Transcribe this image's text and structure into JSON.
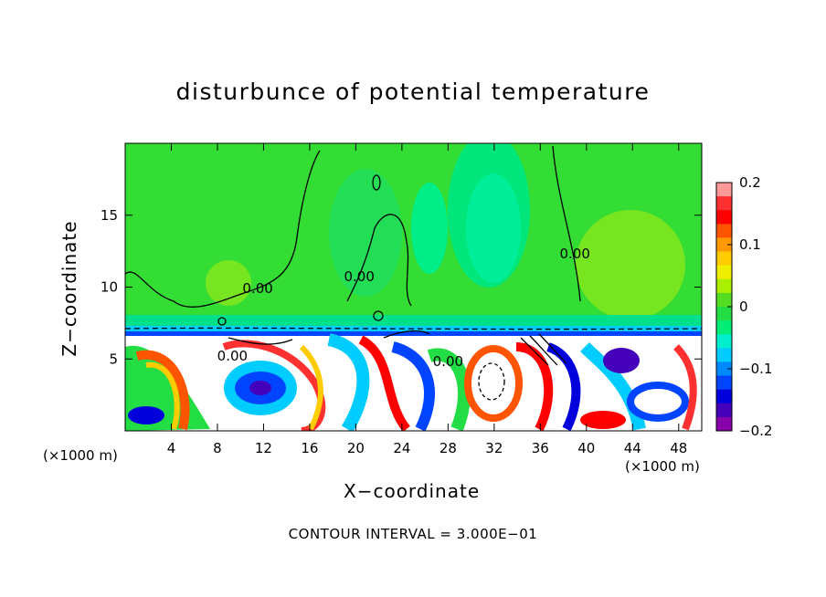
{
  "chart_data": {
    "type": "heatmap",
    "title": "disturbunce of potential temperature",
    "xlabel": "X−coordinate",
    "ylabel": "Z−coordinate",
    "x_unit": "(×1000 m)",
    "footnote": "CONTOUR INTERVAL = 3.000E−01",
    "xlim": [
      0,
      50
    ],
    "ylim": [
      0,
      20
    ],
    "x_ticks": [
      4,
      8,
      12,
      16,
      20,
      24,
      28,
      32,
      36,
      40,
      44,
      48
    ],
    "x_tick_labels": [
      "4",
      "8",
      "12",
      "16",
      "20",
      "24",
      "28",
      "32",
      "36",
      "40",
      "44",
      "48"
    ],
    "y_ticks": [
      5,
      10,
      15
    ],
    "y_tick_labels": [
      "5",
      "10",
      "15"
    ],
    "colorbar": {
      "range": [
        -0.2,
        0.2
      ],
      "tick_values": [
        0.2,
        0.1,
        0,
        -0.1,
        -0.2
      ],
      "tick_labels": [
        "0.2",
        "0.1",
        "0",
        "−0.1",
        "−0.2"
      ],
      "colors": [
        "#ff9999",
        "#ff3030",
        "#ff0000",
        "#ff5500",
        "#ff9900",
        "#ffcc00",
        "#eeee00",
        "#aaee00",
        "#55dd22",
        "#22dd44",
        "#00ee77",
        "#00eecc",
        "#00ccff",
        "#0088ff",
        "#0044ff",
        "#0000dd",
        "#4400bb",
        "#8800aa"
      ]
    },
    "contour_interval": 0.3,
    "contour_labels": [
      {
        "text": "0.00",
        "x": 9.3,
        "z": 4.9
      },
      {
        "text": "0.00",
        "x": 11.5,
        "z": 9.6
      },
      {
        "text": "0.00",
        "x": 20.3,
        "z": 10.4
      },
      {
        "text": "0.00",
        "x": 28.0,
        "z": 4.5
      },
      {
        "text": "0.00",
        "x": 39.0,
        "z": 12.0
      }
    ]
  }
}
